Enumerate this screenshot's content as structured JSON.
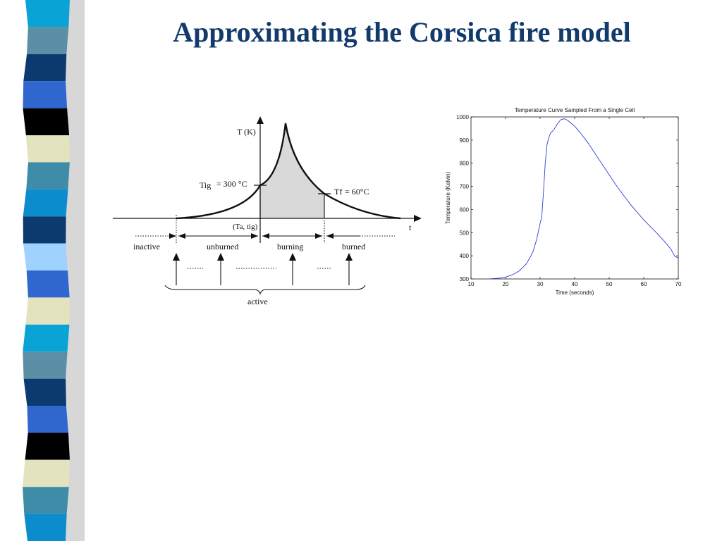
{
  "slide": {
    "title": "Approximating the Corsica fire model"
  },
  "decoration": {
    "stripe_colors": [
      "#0aa3d6",
      "#5b8fa6",
      "#0b3a70",
      "#2f67cf",
      "#000000",
      "#e3e3c0",
      "#3f8ca8",
      "#0b8ccc",
      "#0b3a70",
      "#9fd2ff",
      "#2f67cf",
      "#e3e3c0"
    ]
  },
  "diagram": {
    "y_axis_label": "T (K)",
    "x_axis_label": "t",
    "ignition_label": "Tig",
    "ignition_value": "= 300 °C",
    "final_label": "Tf",
    "final_value": "= 60°C",
    "ignition_point": "(Ta, tig)",
    "phases": [
      "inactive",
      "unburned",
      "burning",
      "burned"
    ],
    "active_label": "active"
  },
  "chart_data": {
    "type": "line",
    "title": "Temperature Curve Sampled From a Single Cell",
    "xlabel": "Time (seconds)",
    "ylabel": "Temperature (Kelvin)",
    "xlim": [
      10,
      70
    ],
    "ylim": [
      300,
      1000
    ],
    "x_ticks": [
      10,
      20,
      30,
      40,
      50,
      60,
      70
    ],
    "y_ticks": [
      300,
      400,
      500,
      600,
      700,
      800,
      900,
      1000
    ],
    "grid": false,
    "series": [
      {
        "color": "#2b3fd6",
        "points": [
          [
            15,
            300
          ],
          [
            18,
            303
          ],
          [
            20,
            308
          ],
          [
            22,
            318
          ],
          [
            24,
            335
          ],
          [
            26,
            365
          ],
          [
            27,
            390
          ],
          [
            28,
            420
          ],
          [
            29,
            470
          ],
          [
            30,
            540
          ],
          [
            30.5,
            570
          ],
          [
            31,
            680
          ],
          [
            31.5,
            800
          ],
          [
            32,
            880
          ],
          [
            32.5,
            910
          ],
          [
            33,
            930
          ],
          [
            34,
            945
          ],
          [
            35,
            970
          ],
          [
            36,
            988
          ],
          [
            37,
            992
          ],
          [
            38,
            985
          ],
          [
            40,
            960
          ],
          [
            42,
            925
          ],
          [
            44,
            885
          ],
          [
            46,
            840
          ],
          [
            48,
            795
          ],
          [
            50,
            750
          ],
          [
            52,
            705
          ],
          [
            54,
            665
          ],
          [
            56,
            625
          ],
          [
            58,
            590
          ],
          [
            60,
            555
          ],
          [
            62,
            525
          ],
          [
            64,
            495
          ],
          [
            66,
            462
          ],
          [
            67,
            445
          ],
          [
            68,
            425
          ],
          [
            69,
            398
          ],
          [
            70,
            390
          ]
        ]
      }
    ]
  }
}
